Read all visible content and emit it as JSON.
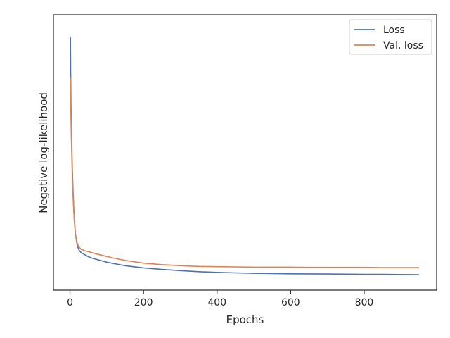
{
  "chart_data": {
    "type": "line",
    "title": "",
    "xlabel": "Epochs",
    "ylabel": "Negative log-likelihood",
    "xlim": [
      -45,
      997
    ],
    "ylim": [
      0,
      1
    ],
    "x_ticks": [
      0,
      200,
      400,
      600,
      800
    ],
    "y_ticks_labeled": false,
    "grid": false,
    "legend_position": "top-right",
    "series": [
      {
        "name": "Loss",
        "color": "#4c72b0",
        "x": [
          1,
          2,
          3,
          4,
          5,
          6,
          8,
          10,
          12,
          15,
          20,
          25,
          30,
          40,
          50,
          60,
          80,
          100,
          120,
          150,
          200,
          250,
          300,
          350,
          400,
          450,
          500,
          550,
          600,
          650,
          700,
          750,
          800,
          850,
          900,
          949
        ],
        "y": [
          0.955,
          0.77,
          0.66,
          0.575,
          0.5,
          0.44,
          0.35,
          0.275,
          0.22,
          0.16,
          0.115,
          0.098,
          0.089,
          0.08,
          0.072,
          0.066,
          0.058,
          0.05,
          0.044,
          0.036,
          0.027,
          0.021,
          0.016,
          0.012,
          0.009,
          0.007,
          0.0055,
          0.0045,
          0.0035,
          0.003,
          0.0025,
          0.002,
          0.0015,
          0.001,
          0.0005,
          0.0
        ]
      },
      {
        "name": "Val. loss",
        "color": "#dd8452",
        "x": [
          1,
          2,
          3,
          4,
          5,
          6,
          8,
          10,
          12,
          15,
          20,
          25,
          30,
          40,
          50,
          60,
          80,
          100,
          120,
          150,
          200,
          250,
          300,
          350,
          400,
          450,
          500,
          550,
          600,
          650,
          700,
          750,
          800,
          850,
          900,
          949
        ],
        "y": [
          0.79,
          0.7,
          0.61,
          0.54,
          0.47,
          0.41,
          0.33,
          0.26,
          0.21,
          0.16,
          0.125,
          0.11,
          0.102,
          0.096,
          0.092,
          0.088,
          0.08,
          0.073,
          0.066,
          0.057,
          0.046,
          0.04,
          0.036,
          0.033,
          0.032,
          0.031,
          0.03,
          0.03,
          0.03,
          0.029,
          0.029,
          0.029,
          0.029,
          0.028,
          0.028,
          0.028
        ]
      }
    ]
  }
}
